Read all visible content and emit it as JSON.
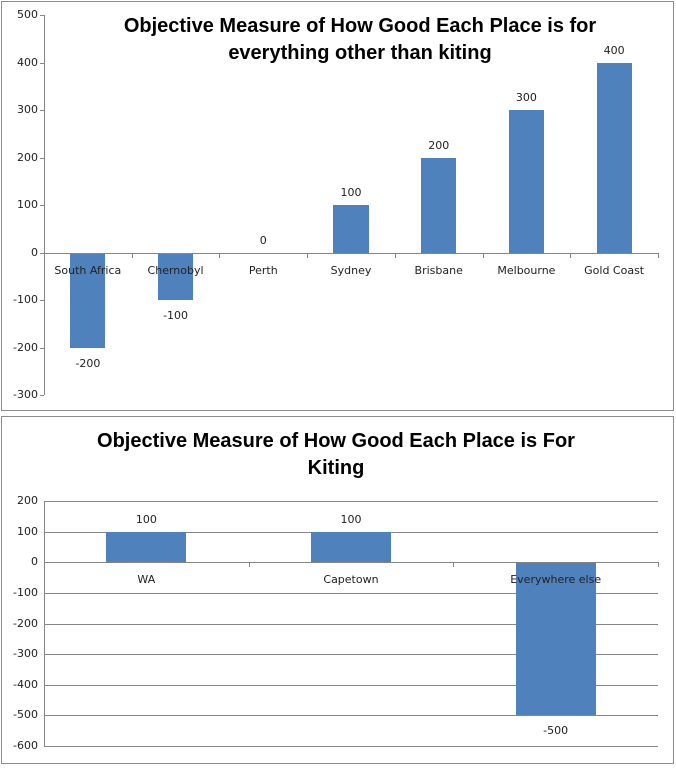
{
  "chart_data": [
    {
      "type": "bar",
      "title": "Objective Measure of How Good Each Place is for everything other than kiting",
      "title_lines": [
        "Objective Measure of How Good Each Place is for",
        "everything other than kiting"
      ],
      "categories": [
        "South Africa",
        "Chernobyl",
        "Perth",
        "Sydney",
        "Brisbane",
        "Melbourne",
        "Gold Coast"
      ],
      "values": [
        -200,
        -100,
        0,
        100,
        200,
        300,
        400
      ],
      "data_labels": [
        "-200",
        "-100",
        "0",
        "100",
        "200",
        "300",
        "400"
      ],
      "xlabel": "",
      "ylabel": "",
      "ylim": [
        -300,
        500
      ],
      "yticks": [
        500,
        400,
        300,
        200,
        100,
        0,
        -100,
        -200,
        -300
      ],
      "grid": false,
      "legend": "none",
      "bar_color": "#4f81bd"
    },
    {
      "type": "bar",
      "title": "Objective Measure of How Good Each Place is For Kiting",
      "title_lines": [
        "Objective Measure of How Good Each Place is For",
        "Kiting"
      ],
      "categories": [
        "WA",
        "Capetown",
        "Everywhere else"
      ],
      "values": [
        100,
        100,
        -500
      ],
      "data_labels": [
        "100",
        "100",
        "-500"
      ],
      "xlabel": "",
      "ylabel": "",
      "ylim": [
        -600,
        200
      ],
      "yticks": [
        200,
        100,
        0,
        -100,
        -200,
        -300,
        -400,
        -500,
        -600
      ],
      "grid": true,
      "legend": "none",
      "bar_color": "#4f81bd"
    }
  ]
}
